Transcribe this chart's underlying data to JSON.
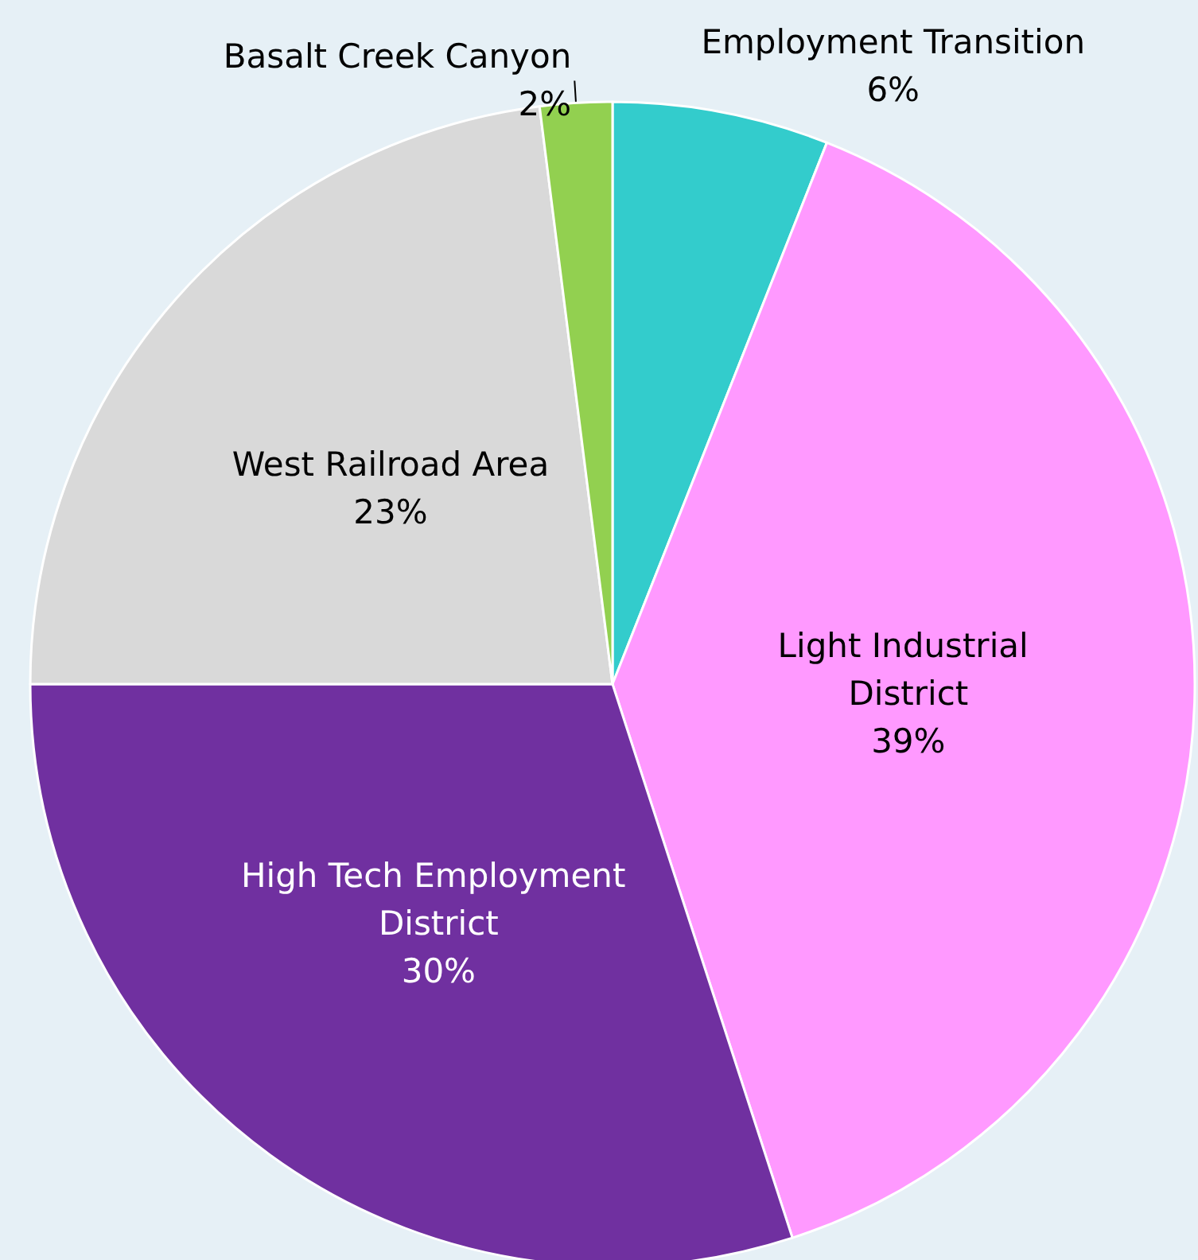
{
  "chart_data": {
    "type": "pie",
    "categories": [
      "Employment Transition",
      "Light Industrial District",
      "High Tech Employment District",
      "West Railroad Area",
      "Basalt Creek Canyon"
    ],
    "values": [
      6,
      39,
      30,
      23,
      2
    ],
    "colors": [
      "#33cccc",
      "#ff99ff",
      "#7030a0",
      "#d9d9d9",
      "#92d050"
    ],
    "value_labels": [
      "6%",
      "39%",
      "30%",
      "23%",
      "2%"
    ]
  }
}
